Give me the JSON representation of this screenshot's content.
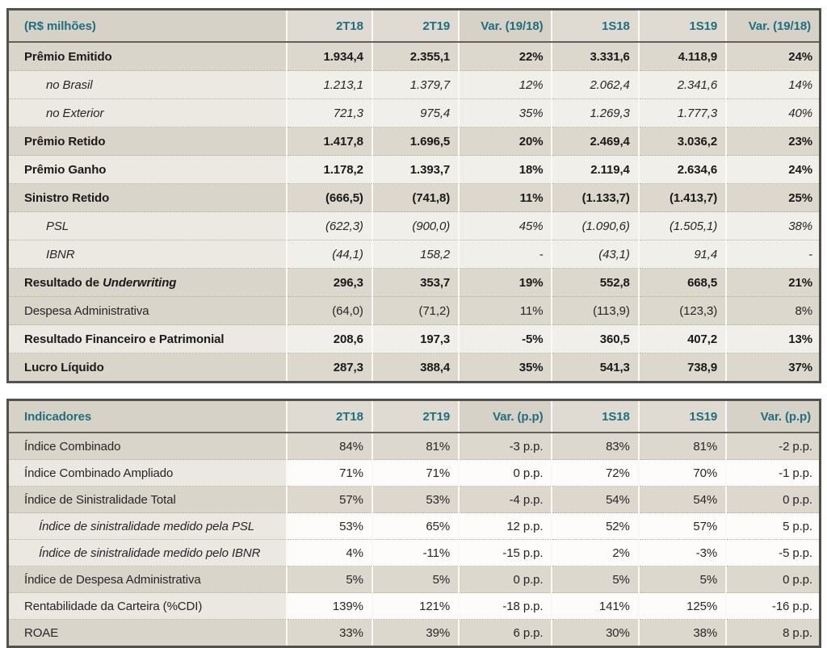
{
  "colors": {
    "accent_teal": "#1F6F7E",
    "band_dark": "#DAD5CB",
    "band_light": "#ECE9E3",
    "header_bg": "#D7D2C8"
  },
  "table1": {
    "title_hint": "results-in-millions",
    "header": {
      "label": "(R$ milhões)",
      "columns": [
        "2T18",
        "2T19",
        "Var. (19/18)",
        "1S18",
        "1S19",
        "Var. (19/18)"
      ]
    },
    "rows": [
      {
        "label": "Prêmio Emitido",
        "style": "bold",
        "shade": "dark",
        "values": [
          "1.934,4",
          "2.355,1",
          "22%",
          "3.331,6",
          "4.118,9",
          "24%"
        ]
      },
      {
        "label": "no Brasil",
        "style": "italic",
        "values_italic": true,
        "shade": "light",
        "values": [
          "1.213,1",
          "1.379,7",
          "12%",
          "2.062,4",
          "2.341,6",
          "14%"
        ]
      },
      {
        "label": "no Exterior",
        "style": "italic",
        "values_italic": true,
        "shade": "light",
        "values": [
          "721,3",
          "975,4",
          "35%",
          "1.269,3",
          "1.777,3",
          "40%"
        ]
      },
      {
        "label": "Prêmio Retido",
        "style": "bold",
        "shade": "dark",
        "values": [
          "1.417,8",
          "1.696,5",
          "20%",
          "2.469,4",
          "3.036,2",
          "23%"
        ]
      },
      {
        "label": "Prêmio Ganho",
        "style": "bold",
        "shade": "light",
        "values": [
          "1.178,2",
          "1.393,7",
          "18%",
          "2.119,4",
          "2.634,6",
          "24%"
        ]
      },
      {
        "label": "Sinistro Retido",
        "style": "bold",
        "shade": "dark",
        "values": [
          "(666,5)",
          "(741,8)",
          "11%",
          "(1.133,7)",
          "(1.413,7)",
          "25%"
        ]
      },
      {
        "label": "PSL",
        "style": "italic",
        "values_italic": true,
        "shade": "light",
        "values": [
          "(622,3)",
          "(900,0)",
          "45%",
          "(1.090,6)",
          "(1.505,1)",
          "38%"
        ]
      },
      {
        "label": "IBNR",
        "style": "italic",
        "values_italic": true,
        "shade": "light",
        "values": [
          "(44,1)",
          "158,2",
          "-",
          "(43,1)",
          "91,4",
          "-"
        ]
      },
      {
        "label_prefix": "Resultado de ",
        "label_em": "Underwriting",
        "style": "bold",
        "shade": "dark",
        "values": [
          "296,3",
          "353,7",
          "19%",
          "552,8",
          "668,5",
          "21%"
        ]
      },
      {
        "label": "Despesa Administrativa",
        "style": "regular",
        "shade": "dark",
        "values": [
          "(64,0)",
          "(71,2)",
          "11%",
          "(113,9)",
          "(123,3)",
          "8%"
        ]
      },
      {
        "label": "Resultado Financeiro e Patrimonial",
        "style": "bold",
        "shade": "light",
        "values": [
          "208,6",
          "197,3",
          "-5%",
          "360,5",
          "407,2",
          "13%"
        ]
      },
      {
        "label": "Lucro Líquido",
        "style": "bold",
        "shade": "dark",
        "values": [
          "287,3",
          "388,4",
          "35%",
          "541,3",
          "738,9",
          "37%"
        ]
      }
    ]
  },
  "table2": {
    "title_hint": "indicators",
    "header": {
      "label": "Indicadores",
      "columns": [
        "2T18",
        "2T19",
        "Var. (p.p)",
        "1S18",
        "1S19",
        "Var. (p.p)"
      ]
    },
    "rows": [
      {
        "label": "Índice Combinado",
        "style": "regular",
        "shade": "dark",
        "values": [
          "84%",
          "81%",
          "-3 p.p.",
          "83%",
          "81%",
          "-2 p.p."
        ]
      },
      {
        "label": "Índice Combinado Ampliado",
        "style": "regular",
        "shade": "light",
        "values": [
          "71%",
          "71%",
          "0 p.p.",
          "72%",
          "70%",
          "-1 p.p."
        ]
      },
      {
        "label": "Índice de Sinistralidade Total",
        "style": "regular",
        "shade": "dark",
        "values": [
          "57%",
          "53%",
          "-4 p.p.",
          "54%",
          "54%",
          "0 p.p."
        ]
      },
      {
        "label": "Índice de sinistralidade medido pela PSL",
        "style": "italic",
        "shade": "light",
        "values": [
          "53%",
          "65%",
          "12 p.p.",
          "52%",
          "57%",
          "5 p.p."
        ]
      },
      {
        "label": "Índice de sinistralidade medido pelo IBNR",
        "style": "italic",
        "shade": "light",
        "values": [
          "4%",
          "-11%",
          "-15 p.p.",
          "2%",
          "-3%",
          "-5 p.p."
        ]
      },
      {
        "label": "Índice de Despesa Administrativa",
        "style": "regular",
        "shade": "dark",
        "values": [
          "5%",
          "5%",
          "0 p.p.",
          "5%",
          "5%",
          "0 p.p."
        ]
      },
      {
        "label": "Rentabilidade da Carteira (%CDI)",
        "style": "regular",
        "shade": "light",
        "values": [
          "139%",
          "121%",
          "-18 p.p.",
          "141%",
          "125%",
          "-16 p.p."
        ]
      },
      {
        "label": "ROAE",
        "style": "regular",
        "shade": "dark",
        "values": [
          "33%",
          "39%",
          "6 p.p.",
          "30%",
          "38%",
          "8 p.p."
        ]
      }
    ]
  }
}
